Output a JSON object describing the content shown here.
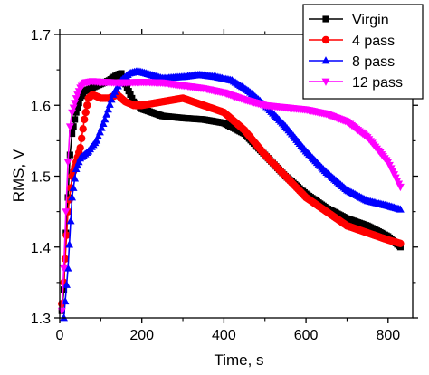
{
  "chart_data": {
    "type": "line",
    "title": "",
    "xlabel": "Time, s",
    "ylabel": "RMS, V",
    "xlim": [
      0,
      860
    ],
    "ylim": [
      1.3,
      1.7
    ],
    "xticks": [
      0,
      200,
      400,
      600,
      800
    ],
    "yticks": [
      1.3,
      1.4,
      1.5,
      1.6,
      1.7
    ],
    "xtick_labels": [
      "0",
      "200",
      "400",
      "600",
      "800"
    ],
    "ytick_labels": [
      "1.3",
      "1.4",
      "1.5",
      "1.6",
      "1.7"
    ],
    "grid": false,
    "legend_position": "top-right",
    "series": [
      {
        "name": "Virgin",
        "color": "#000000",
        "marker": "square",
        "points": [
          [
            5,
            1.31
          ],
          [
            10,
            1.34
          ],
          [
            15,
            1.42
          ],
          [
            20,
            1.47
          ],
          [
            25,
            1.53
          ],
          [
            30,
            1.56
          ],
          [
            40,
            1.59
          ],
          [
            50,
            1.61
          ],
          [
            60,
            1.62
          ],
          [
            80,
            1.625
          ],
          [
            100,
            1.63
          ],
          [
            120,
            1.635
          ],
          [
            140,
            1.643
          ],
          [
            150,
            1.645
          ],
          [
            160,
            1.63
          ],
          [
            180,
            1.605
          ],
          [
            200,
            1.595
          ],
          [
            250,
            1.585
          ],
          [
            300,
            1.582
          ],
          [
            350,
            1.58
          ],
          [
            400,
            1.575
          ],
          [
            450,
            1.56
          ],
          [
            500,
            1.53
          ],
          [
            550,
            1.5
          ],
          [
            600,
            1.475
          ],
          [
            650,
            1.455
          ],
          [
            700,
            1.44
          ],
          [
            750,
            1.43
          ],
          [
            800,
            1.415
          ],
          [
            830,
            1.4
          ]
        ]
      },
      {
        "name": "4 pass",
        "color": "#ff0000",
        "marker": "circle",
        "points": [
          [
            5,
            1.32
          ],
          [
            10,
            1.35
          ],
          [
            20,
            1.45
          ],
          [
            30,
            1.5
          ],
          [
            40,
            1.52
          ],
          [
            50,
            1.54
          ],
          [
            60,
            1.58
          ],
          [
            70,
            1.61
          ],
          [
            80,
            1.615
          ],
          [
            100,
            1.61
          ],
          [
            120,
            1.61
          ],
          [
            140,
            1.615
          ],
          [
            160,
            1.605
          ],
          [
            180,
            1.6
          ],
          [
            200,
            1.6
          ],
          [
            250,
            1.605
          ],
          [
            300,
            1.61
          ],
          [
            350,
            1.6
          ],
          [
            400,
            1.59
          ],
          [
            450,
            1.565
          ],
          [
            500,
            1.53
          ],
          [
            550,
            1.5
          ],
          [
            600,
            1.47
          ],
          [
            650,
            1.45
          ],
          [
            700,
            1.43
          ],
          [
            750,
            1.42
          ],
          [
            800,
            1.41
          ],
          [
            830,
            1.405
          ]
        ]
      },
      {
        "name": "8 pass",
        "color": "#0000ff",
        "marker": "triangle-up",
        "points": [
          [
            10,
            1.3
          ],
          [
            20,
            1.37
          ],
          [
            30,
            1.47
          ],
          [
            40,
            1.51
          ],
          [
            50,
            1.525
          ],
          [
            70,
            1.535
          ],
          [
            90,
            1.55
          ],
          [
            110,
            1.58
          ],
          [
            130,
            1.615
          ],
          [
            150,
            1.635
          ],
          [
            170,
            1.645
          ],
          [
            190,
            1.648
          ],
          [
            210,
            1.645
          ],
          [
            250,
            1.638
          ],
          [
            300,
            1.64
          ],
          [
            340,
            1.643
          ],
          [
            380,
            1.64
          ],
          [
            420,
            1.635
          ],
          [
            460,
            1.62
          ],
          [
            500,
            1.6
          ],
          [
            550,
            1.57
          ],
          [
            600,
            1.535
          ],
          [
            650,
            1.505
          ],
          [
            700,
            1.48
          ],
          [
            750,
            1.465
          ],
          [
            800,
            1.458
          ],
          [
            830,
            1.453
          ]
        ]
      },
      {
        "name": "12 pass",
        "color": "#ff00ff",
        "marker": "triangle-down",
        "points": [
          [
            5,
            1.31
          ],
          [
            10,
            1.37
          ],
          [
            15,
            1.45
          ],
          [
            20,
            1.52
          ],
          [
            25,
            1.57
          ],
          [
            30,
            1.59
          ],
          [
            40,
            1.61
          ],
          [
            50,
            1.625
          ],
          [
            60,
            1.632
          ],
          [
            80,
            1.634
          ],
          [
            100,
            1.633
          ],
          [
            150,
            1.632
          ],
          [
            200,
            1.633
          ],
          [
            250,
            1.632
          ],
          [
            300,
            1.628
          ],
          [
            350,
            1.624
          ],
          [
            400,
            1.618
          ],
          [
            450,
            1.608
          ],
          [
            500,
            1.6
          ],
          [
            550,
            1.597
          ],
          [
            600,
            1.594
          ],
          [
            650,
            1.588
          ],
          [
            700,
            1.577
          ],
          [
            750,
            1.555
          ],
          [
            800,
            1.52
          ],
          [
            830,
            1.485
          ]
        ]
      }
    ]
  }
}
